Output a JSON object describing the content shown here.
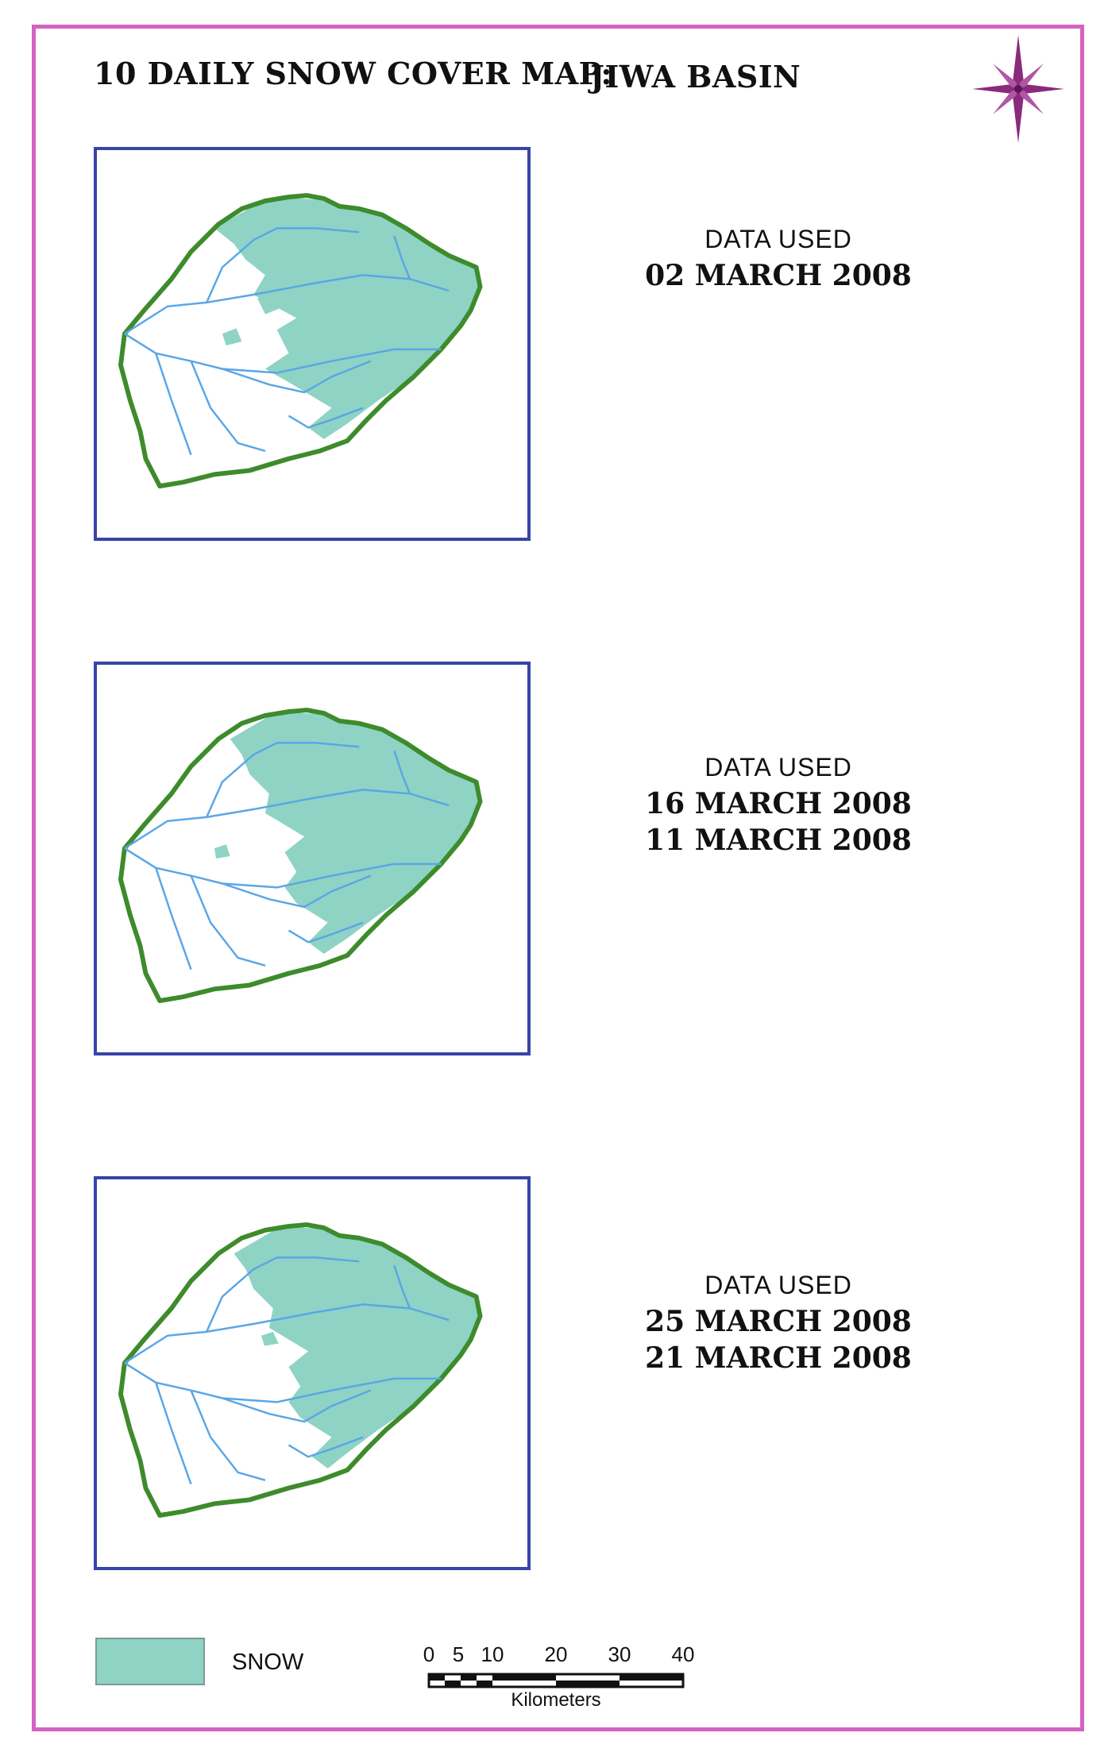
{
  "title": {
    "main": "10 DAILY SNOW COVER MAP:",
    "basin": "JIWA  BASIN"
  },
  "maps": [
    {
      "label": "DATA  USED",
      "dates": [
        "02 MARCH 2008"
      ]
    },
    {
      "label": "DATA  USED",
      "dates": [
        "16 MARCH 2008",
        "11 MARCH 2008"
      ]
    },
    {
      "label": "DATA  USED",
      "dates": [
        "25 MARCH 2008",
        "21 MARCH 2008"
      ]
    }
  ],
  "legend": {
    "label": "SNOW",
    "color": "#8fd3c4"
  },
  "scale_bar": {
    "ticks": [
      "0",
      "5",
      "10",
      "20",
      "30",
      "40"
    ],
    "unit": "Kilometers"
  },
  "colors": {
    "frame": "#d462c0",
    "map_border": "#3645a7",
    "basin_outline": "#3e8b2c",
    "rivers": "#5aa6e6",
    "snow": "#8fd3c4",
    "compass": "#8a2a7a"
  },
  "icons": {
    "north_arrow": "compass-rose-icon"
  }
}
